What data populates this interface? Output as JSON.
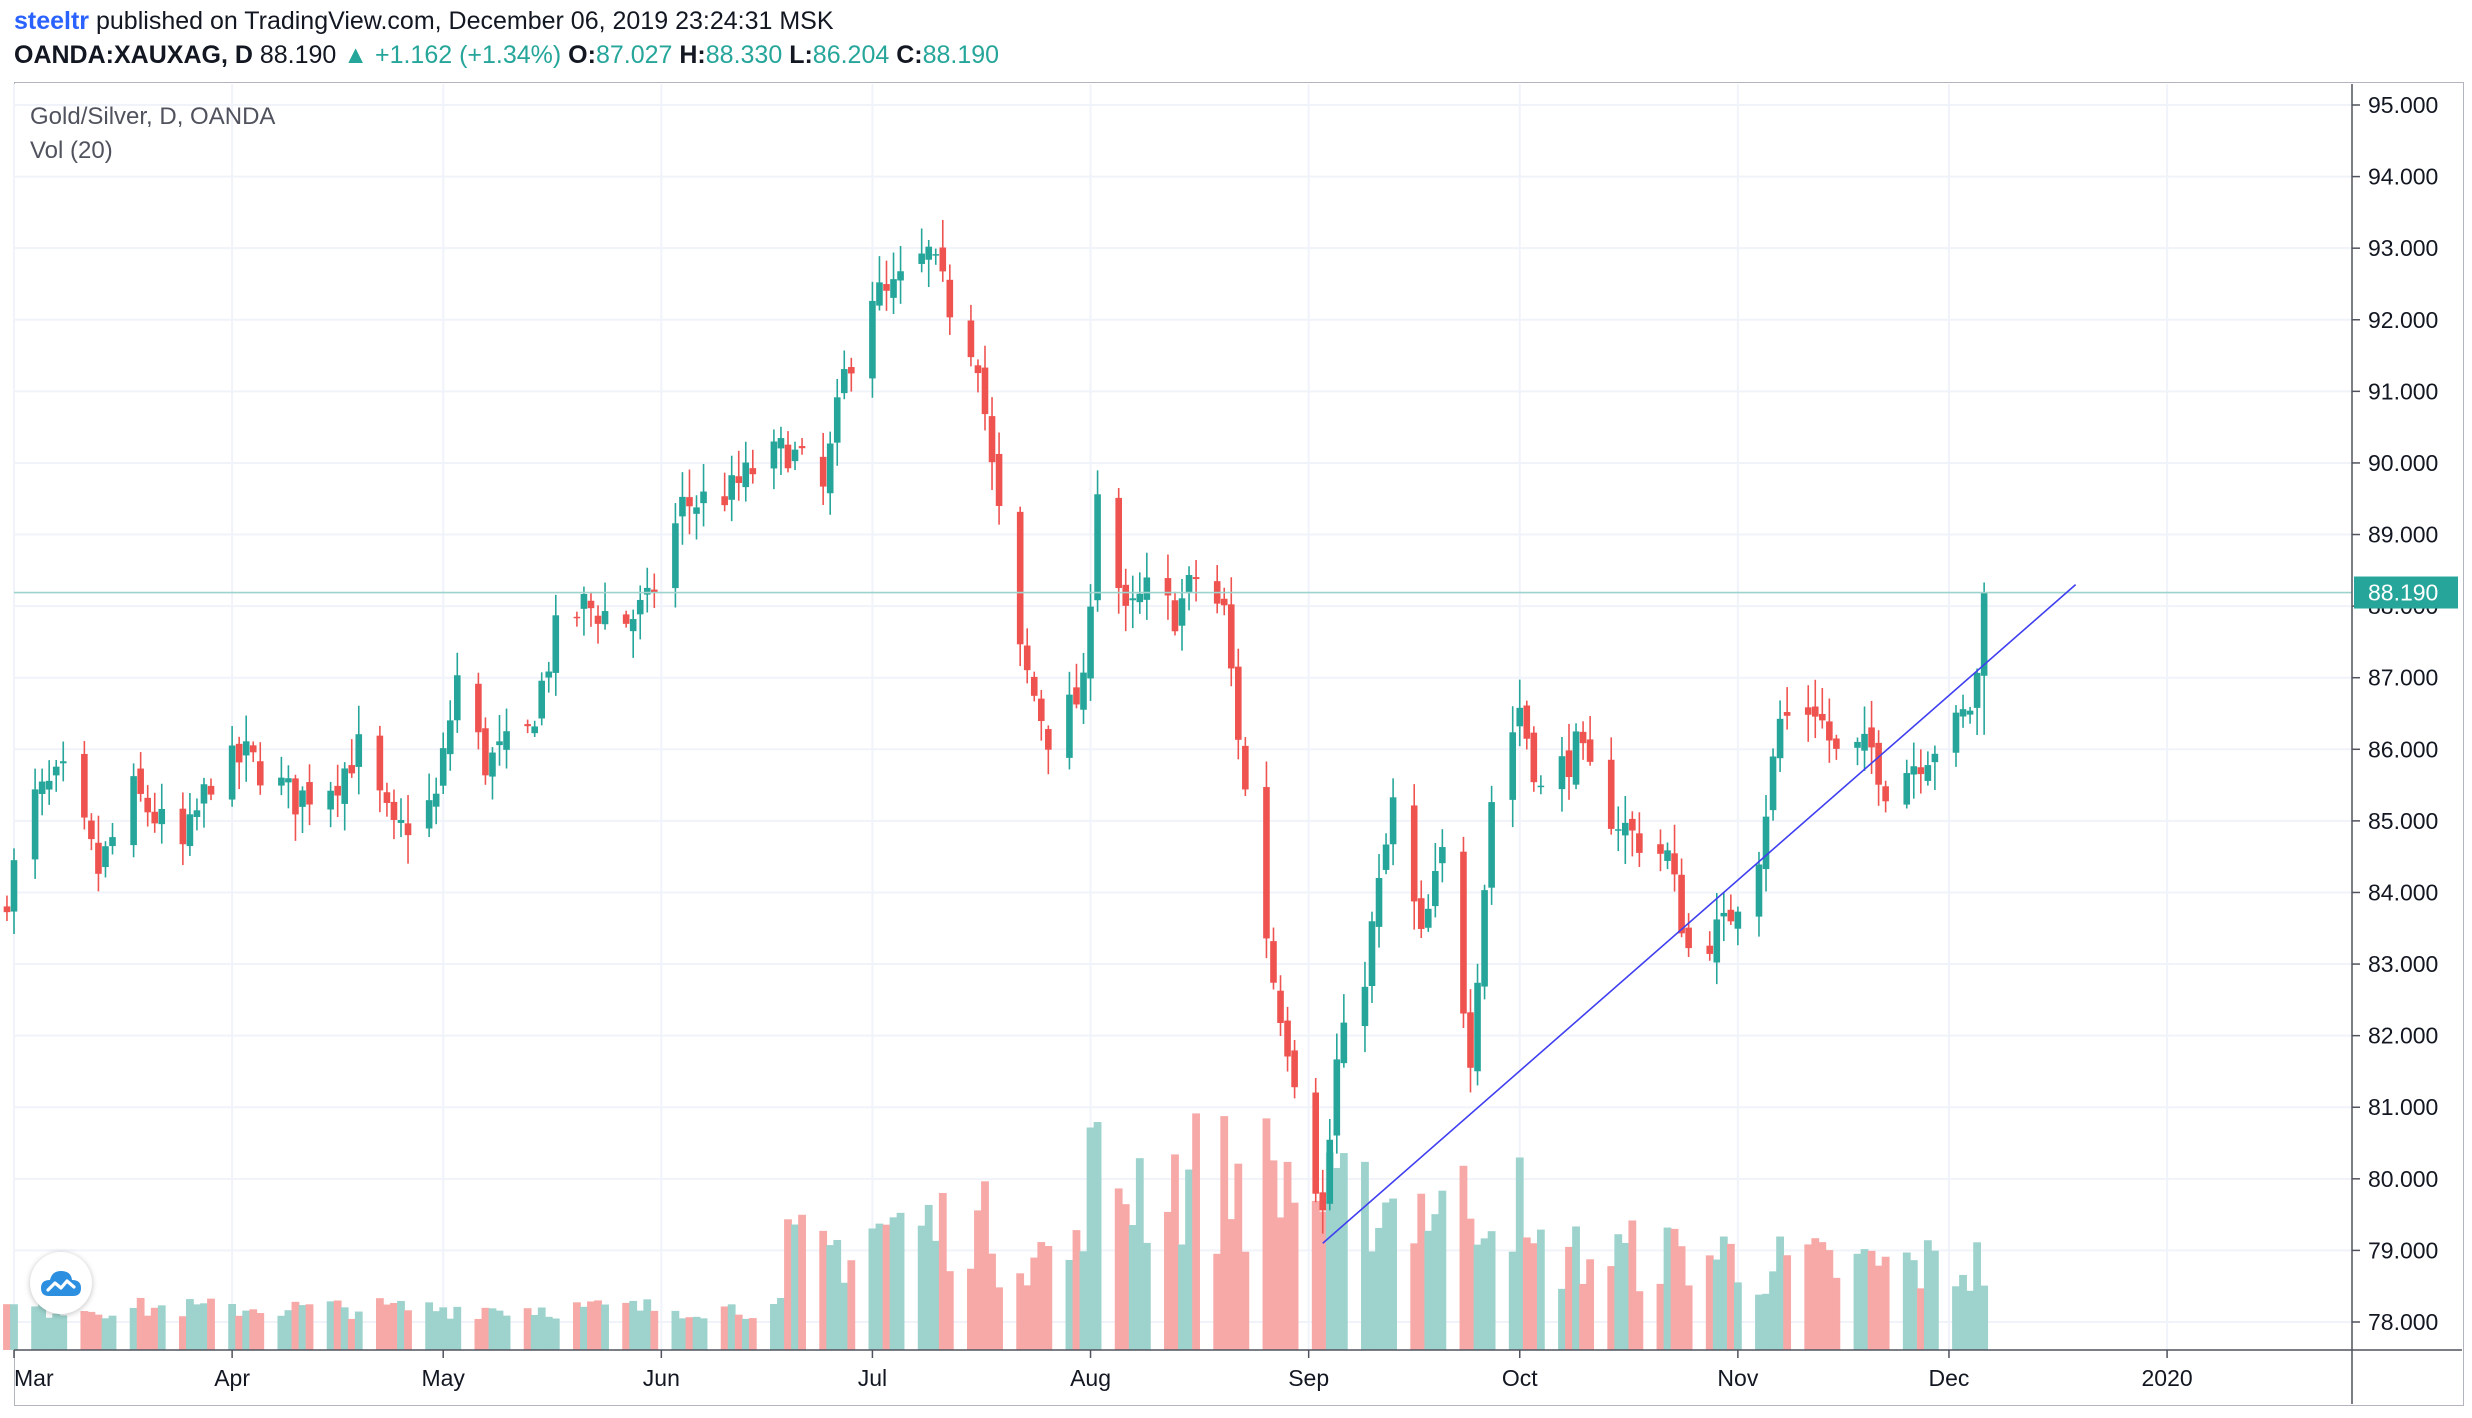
{
  "header": {
    "user": "steeltr",
    "published_text": "published on TradingView.com, December 06, 2019 23:24:31 MSK",
    "symbol": "OANDA:XAUXAG, D",
    "last": "88.190",
    "change": "▲ +1.162 (+1.34%)",
    "o_label": "O:",
    "o_value": "87.027",
    "h_label": "H:",
    "h_value": "88.330",
    "l_label": "L:",
    "l_value": "86.204",
    "c_label": "C:",
    "c_value": "88.190"
  },
  "legend": {
    "series_name": "Gold/Silver, D, OANDA",
    "indicator_name": "Vol (20)"
  },
  "colors": {
    "up": "#26a69a",
    "down": "#ef5350",
    "vol_up": "#9ed3cd",
    "vol_down": "#f7a9a7",
    "trendline": "#3f3ff0",
    "price_line": "#9ed3cd",
    "grid": "#f0f3fa"
  },
  "chart_data": {
    "type": "candlestick",
    "title": "Gold/Silver, D, OANDA",
    "price_axis": {
      "range": [
        77.6,
        95.3
      ],
      "ticks": [
        "95.000",
        "94.000",
        "93.000",
        "92.000",
        "91.000",
        "90.000",
        "89.000",
        "88.000",
        "87.000",
        "86.000",
        "85.000",
        "84.000",
        "83.000",
        "82.000",
        "81.000",
        "80.000",
        "79.000",
        "78.000"
      ]
    },
    "time_axis": {
      "ticks": [
        "Mar",
        "Apr",
        "May",
        "Jun",
        "Jul",
        "Aug",
        "Sep",
        "Oct",
        "Nov",
        "Dec",
        "2020"
      ]
    },
    "last_price_label": "88.190",
    "grid": true,
    "anchor_closes": [
      [
        "Feb 28",
        84.0
      ],
      [
        "Mar 4",
        85.3
      ],
      [
        "Mar 8",
        85.6
      ],
      [
        "Mar 13",
        84.3
      ],
      [
        "Mar 18",
        85.4
      ],
      [
        "Mar 25",
        84.6
      ],
      [
        "Mar 29",
        85.6
      ],
      [
        "Apr 3",
        85.9
      ],
      [
        "Apr 10",
        85.3
      ],
      [
        "Apr 16",
        85.6
      ],
      [
        "Apr 19",
        86.0
      ],
      [
        "Apr 24",
        84.8
      ],
      [
        "Apr 30",
        85.3
      ],
      [
        "May 3",
        87.0
      ],
      [
        "May 7",
        85.8
      ],
      [
        "May 13",
        86.2
      ],
      [
        "May 17",
        87.6
      ],
      [
        "May 21",
        88.0
      ],
      [
        "May 27",
        87.8
      ],
      [
        "May 30",
        88.0
      ],
      [
        "Jun 4",
        89.4
      ],
      [
        "Jun 11",
        89.6
      ],
      [
        "Jun 14",
        89.9
      ],
      [
        "Jun 19",
        90.2
      ],
      [
        "Jun 24",
        89.6
      ],
      [
        "Jun 27",
        91.2
      ],
      [
        "Jul 1",
        92.4
      ],
      [
        "Jul 3",
        92.3
      ],
      [
        "Jul 9",
        92.9
      ],
      [
        "Jul 12",
        92.2
      ],
      [
        "Jul 16",
        91.5
      ],
      [
        "Jul 18",
        89.9
      ],
      [
        "Jul 22",
        87.3
      ],
      [
        "Jul 26",
        86.2
      ],
      [
        "Jul 31",
        86.8
      ],
      [
        "Aug 2",
        89.7
      ],
      [
        "Aug 6",
        87.8
      ],
      [
        "Aug 9",
        88.2
      ],
      [
        "Aug 13",
        87.9
      ],
      [
        "Aug 16",
        88.4
      ],
      [
        "Aug 20",
        87.9
      ],
      [
        "Aug 23",
        85.4
      ],
      [
        "Aug 27",
        82.8
      ],
      [
        "Aug 30",
        81.5
      ],
      [
        "Sep 3",
        79.5
      ],
      [
        "Sep 5",
        81.6
      ],
      [
        "Sep 9",
        82.9
      ],
      [
        "Sep 13",
        85.2
      ],
      [
        "Sep 17",
        83.3
      ],
      [
        "Sep 20",
        84.5
      ],
      [
        "Sep 24",
        81.8
      ],
      [
        "Sep 27",
        85.3
      ],
      [
        "Oct 1",
        86.6
      ],
      [
        "Oct 4",
        85.4
      ],
      [
        "Oct 9",
        86.0
      ],
      [
        "Oct 14",
        85.1
      ],
      [
        "Oct 17",
        84.8
      ],
      [
        "Oct 22",
        84.5
      ],
      [
        "Oct 25",
        83.2
      ],
      [
        "Oct 30",
        83.5
      ],
      [
        "Nov 4",
        84.6
      ],
      [
        "Nov 7",
        86.4
      ],
      [
        "Nov 12",
        86.6
      ],
      [
        "Nov 15",
        85.9
      ],
      [
        "Nov 20",
        86.0
      ],
      [
        "Nov 22",
        85.5
      ],
      [
        "Nov 27",
        85.9
      ],
      [
        "Dec 2",
        86.3
      ],
      [
        "Dec 4",
        86.6
      ],
      [
        "Dec 5",
        87.0
      ],
      [
        "Dec 6",
        88.19
      ]
    ],
    "volume_series": {
      "name": "Vol (20)",
      "pattern": "low Mar–May, rising in late Jun–Jul, peaks in Aug, elevated Sep, moderate Oct–Dec"
    },
    "trendline": {
      "from": [
        "Sep 3",
        79.1
      ],
      "to": [
        "Dec 19",
        88.3
      ]
    }
  }
}
